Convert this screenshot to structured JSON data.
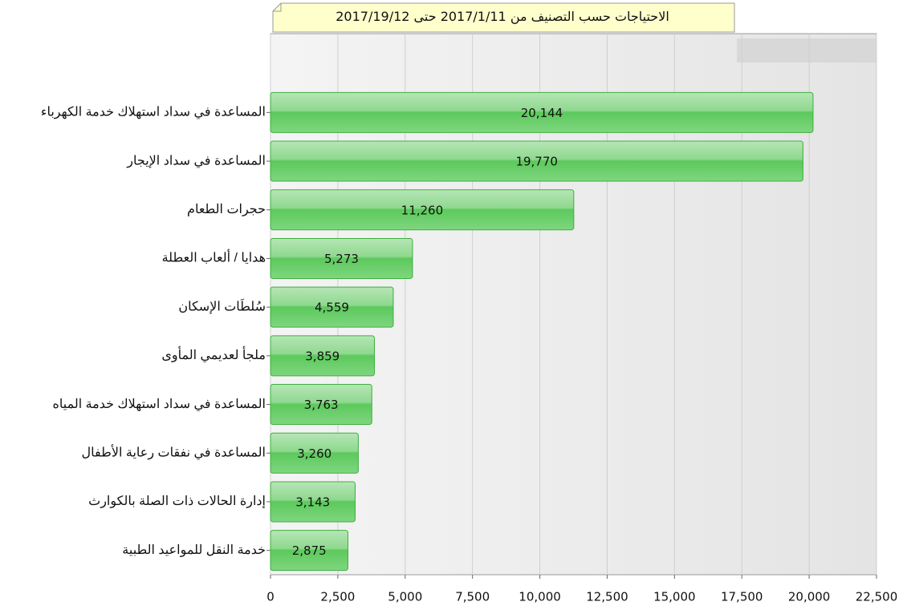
{
  "chart_data": {
    "type": "bar",
    "orientation": "horizontal",
    "title": "الاحتياجات حسب التصنيف من 2017/1/11 حتى 2017/19/12",
    "categories": [
      "المساعدة في سداد استهلاك خدمة الكهرباء",
      "المساعدة في سداد الإيجار",
      "حجرات الطعام",
      "هدايا / ألعاب العطلة",
      "سُلطَات الإسكان",
      "ملجأ لعديمي المأوى",
      "المساعدة في سداد استهلاك خدمة المياه",
      "المساعدة في نفقات رعاية الأطفال",
      "إدارة الحالات ذات الصلة بالكوارث",
      "خدمة النقل للمواعيد الطبية"
    ],
    "values": [
      20144,
      19770,
      11260,
      5273,
      4559,
      3859,
      3763,
      3260,
      3143,
      2875
    ],
    "value_labels": [
      "20,144",
      "19,770",
      "11,260",
      "5,273",
      "4,559",
      "3,859",
      "3,763",
      "3,260",
      "3,143",
      "2,875"
    ],
    "color": "#5cc95c",
    "xlim": [
      0,
      22500
    ],
    "xticks": [
      0,
      {
        "value": 2500,
        "label": "2,500"
      },
      {
        "value": 5000,
        "label": "5,000"
      },
      {
        "value": 7500,
        "label": "7,500"
      },
      {
        "value": 10000,
        "label": "10,000"
      },
      {
        "value": 12500,
        "label": "12,500"
      },
      {
        "value": 15000,
        "label": "15,000"
      },
      {
        "value": 17500,
        "label": "17,500"
      },
      {
        "value": 20000,
        "label": "20,000"
      },
      {
        "value": 22500,
        "label": "22,500"
      }
    ],
    "grid": true
  }
}
